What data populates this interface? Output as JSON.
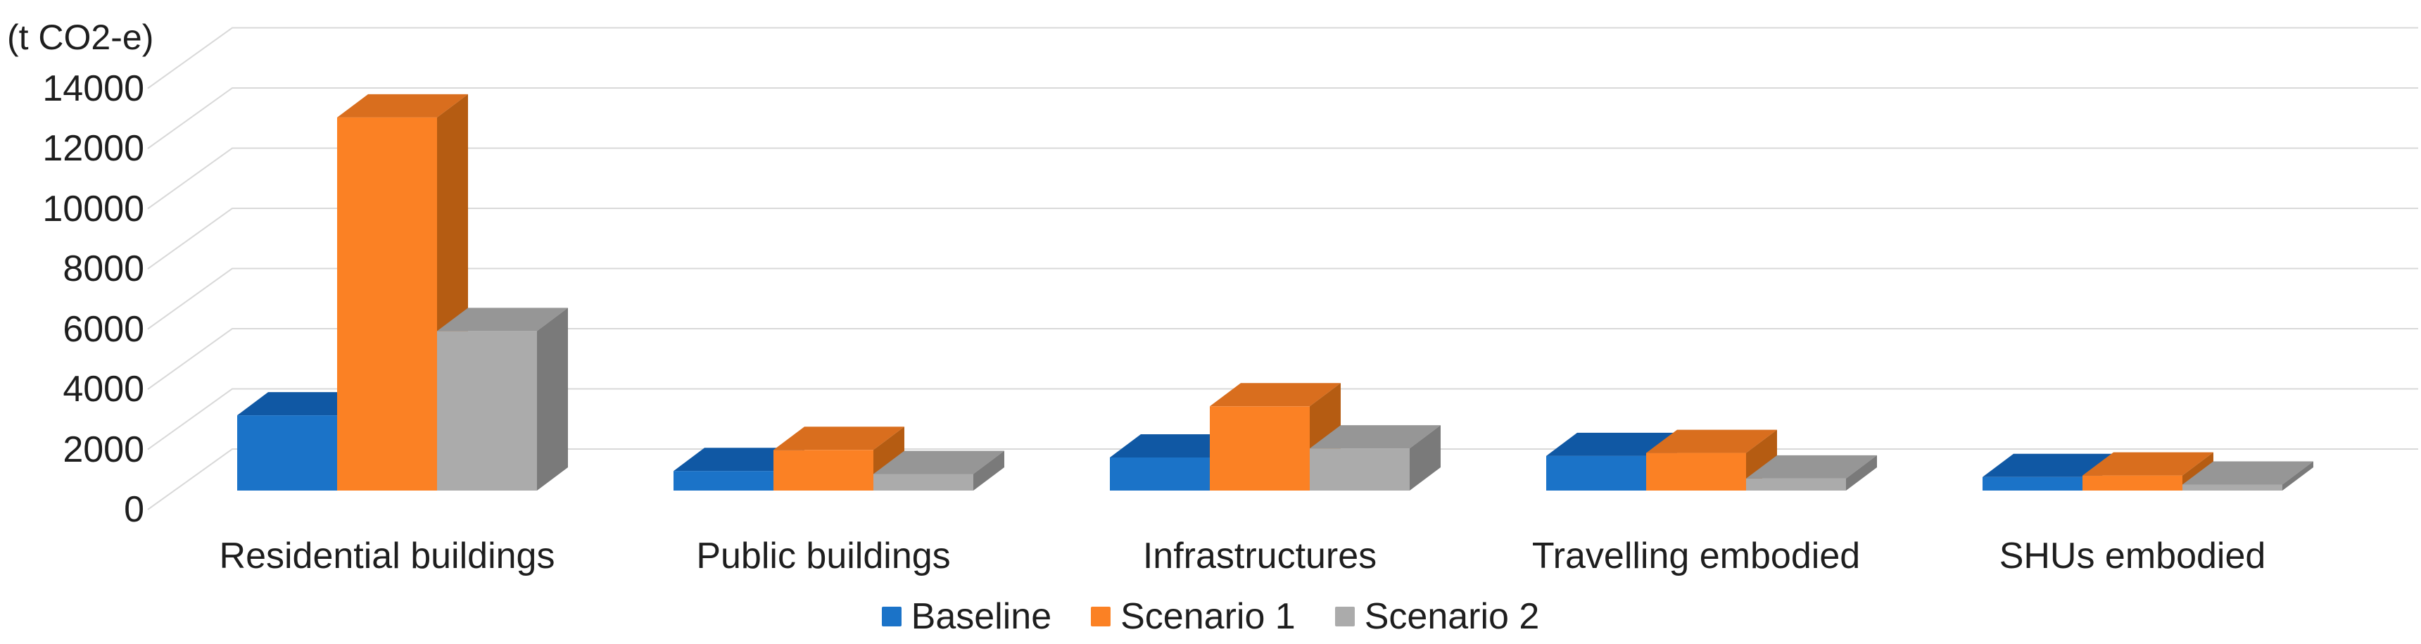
{
  "chart_data": {
    "type": "bar",
    "style": "3d-clustered-column",
    "axis_title": "(t CO2-e)",
    "categories": [
      "Residential buildings",
      "Public buildings",
      "Infrastructures",
      "Travelling embodied",
      "SHUs embodied"
    ],
    "series": [
      {
        "name": "Baseline",
        "values": [
          2500,
          650,
          1100,
          1150,
          450
        ],
        "color": "#1B73C8",
        "color_top": "#1058A4",
        "color_side": "#0D4A8F"
      },
      {
        "name": "Scenario 1",
        "values": [
          12400,
          1350,
          2800,
          1250,
          500
        ],
        "color": "#FB8124",
        "color_top": "#D96E1E",
        "color_side": "#B55C12"
      },
      {
        "name": "Scenario 2",
        "values": [
          5300,
          550,
          1400,
          400,
          200
        ],
        "color": "#ABABAB",
        "color_top": "#969696",
        "color_side": "#7A7A7A"
      }
    ],
    "ylim": [
      0,
      14000
    ],
    "ytick_step": 2000,
    "ytick_labels": [
      "0",
      "2000",
      "4000",
      "6000",
      "8000",
      "10000",
      "12000",
      "14000"
    ],
    "grid": true,
    "gridline_color": "#D9D9D9",
    "legend_position": "bottom-center",
    "text_color": "#1E1E1E",
    "background": "#FFFFFF"
  }
}
